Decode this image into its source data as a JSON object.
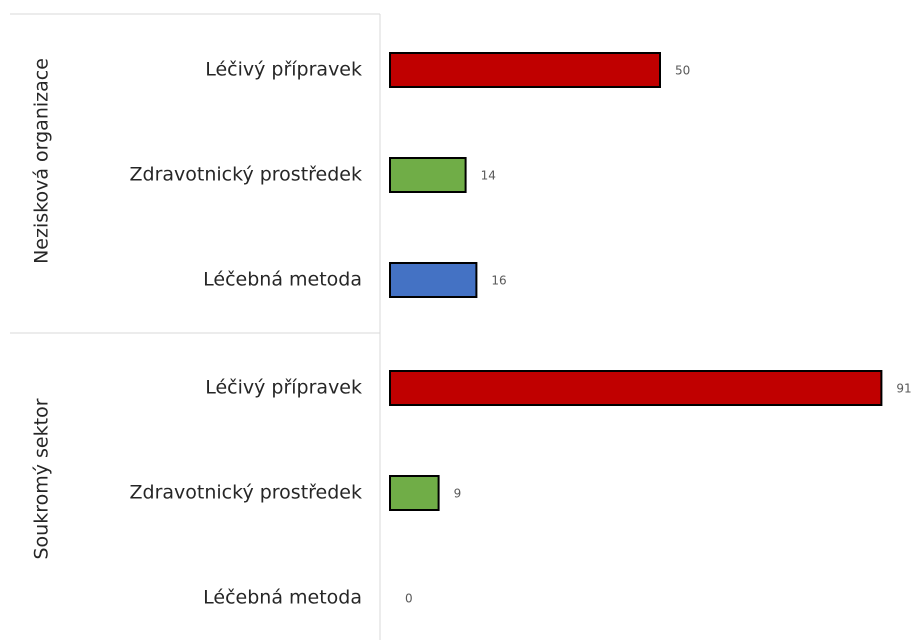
{
  "chart_data": {
    "type": "bar",
    "orientation": "horizontal",
    "categories": [
      "Léčivý přípravek",
      "Zdravotnický prostředek",
      "Léčebná metoda"
    ],
    "colors": [
      "#c00000",
      "#70ad47",
      "#4472c4"
    ],
    "groups": [
      {
        "name": "Nezisková organizace",
        "values": [
          50,
          14,
          16
        ]
      },
      {
        "name": "Soukromý sektor",
        "values": [
          91,
          9,
          0
        ]
      }
    ]
  }
}
